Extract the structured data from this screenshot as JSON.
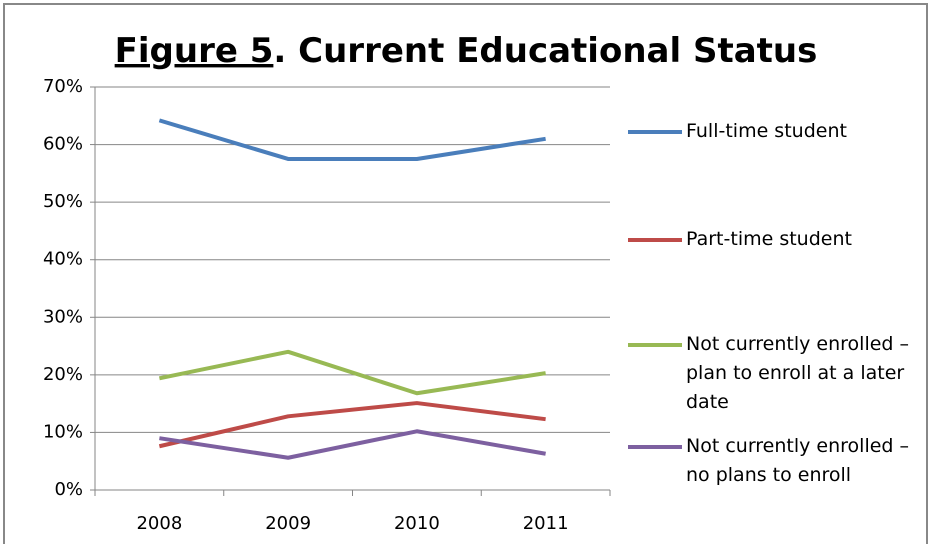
{
  "chart_data": {
    "type": "line",
    "title_parts": [
      "Figure 5",
      ". Current Educational Status"
    ],
    "categories": [
      "2008",
      "2009",
      "2010",
      "2011"
    ],
    "series": [
      {
        "name": "Full-time student",
        "color": "#4a7ebb",
        "values": [
          64.2,
          57.5,
          57.5,
          61.0
        ]
      },
      {
        "name": "Part-time student",
        "color": "#be4b48",
        "values": [
          7.6,
          12.8,
          15.1,
          12.3
        ]
      },
      {
        "name": "Not currently enrolled – plan to enroll at a later date",
        "color": "#98b954",
        "values": [
          19.4,
          24.0,
          16.8,
          20.3
        ]
      },
      {
        "name": "Not currently enrolled – no plans to enroll",
        "color": "#7d60a0",
        "values": [
          9.0,
          5.6,
          10.2,
          6.3
        ]
      }
    ],
    "ylim": [
      0,
      70
    ],
    "yticks": [
      {
        "value": 0,
        "label": "0%"
      },
      {
        "value": 10,
        "label": "10%"
      },
      {
        "value": 20,
        "label": "20%"
      },
      {
        "value": 30,
        "label": "30%"
      },
      {
        "value": 40,
        "label": "40%"
      },
      {
        "value": 50,
        "label": "50%"
      },
      {
        "value": 60,
        "label": "60%"
      },
      {
        "value": 70,
        "label": "70%"
      }
    ],
    "grid": true
  }
}
